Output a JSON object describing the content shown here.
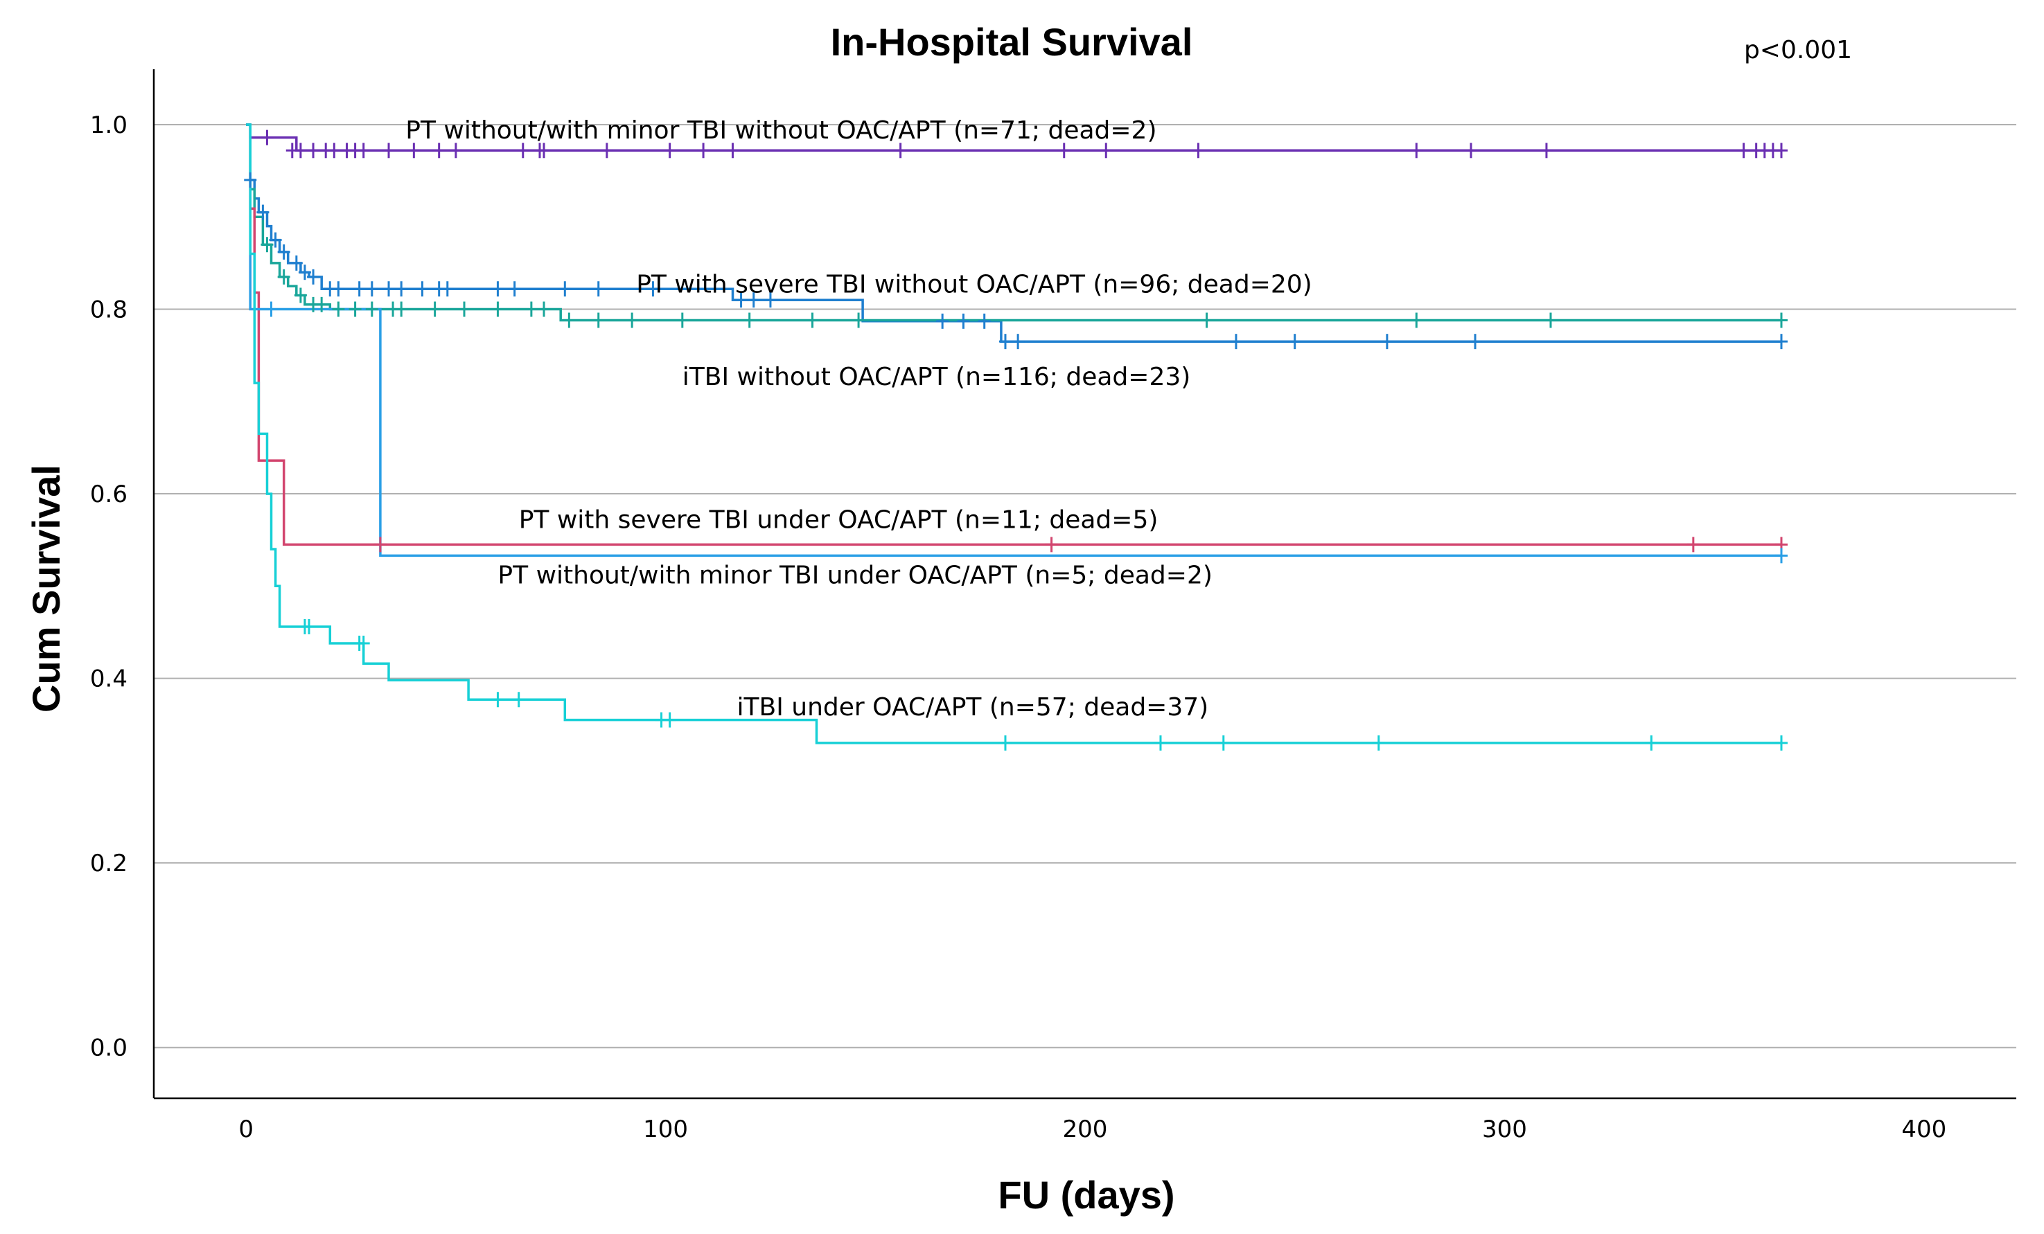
{
  "chart_data": {
    "type": "line",
    "subtype": "kaplan-meier",
    "title": "In-Hospital Survival",
    "p_value": "p<0.001",
    "xlabel": "FU (days)",
    "ylabel": "Cum Survival",
    "xlim": [
      -22,
      422
    ],
    "ylim": [
      -0.055,
      1.06
    ],
    "x_ticks": [
      0,
      100,
      200,
      300,
      400
    ],
    "x_tick_labels": [
      "0",
      "100",
      "200",
      "300",
      "400"
    ],
    "y_ticks": [
      0.0,
      0.2,
      0.4,
      0.6,
      0.8,
      1.0
    ],
    "y_tick_labels": [
      "0.0",
      "0.2",
      "0.4",
      "0.6",
      "0.8",
      "1.0"
    ],
    "grid": "horizontal",
    "series": [
      {
        "name": "PT without/with minor TBI without OAC/APT (n=71; dead=2)",
        "color": "#6a2fb2",
        "steps": [
          [
            0,
            1.0
          ],
          [
            1,
            0.986
          ],
          [
            12,
            0.972
          ],
          [
            366,
            0.972
          ]
        ],
        "censored": [
          [
            5,
            0.986
          ],
          [
            11,
            0.972
          ],
          [
            13,
            0.972
          ],
          [
            16,
            0.972
          ],
          [
            19,
            0.972
          ],
          [
            21,
            0.972
          ],
          [
            24,
            0.972
          ],
          [
            26,
            0.972
          ],
          [
            28,
            0.972
          ],
          [
            34,
            0.972
          ],
          [
            40,
            0.972
          ],
          [
            46,
            0.972
          ],
          [
            50,
            0.972
          ],
          [
            66,
            0.972
          ],
          [
            70,
            0.972
          ],
          [
            71,
            0.972
          ],
          [
            86,
            0.972
          ],
          [
            101,
            0.972
          ],
          [
            109,
            0.972
          ],
          [
            116,
            0.972
          ],
          [
            156,
            0.972
          ],
          [
            195,
            0.972
          ],
          [
            205,
            0.972
          ],
          [
            227,
            0.972
          ],
          [
            279,
            0.972
          ],
          [
            292,
            0.972
          ],
          [
            310,
            0.972
          ],
          [
            357,
            0.972
          ],
          [
            360,
            0.972
          ],
          [
            362,
            0.972
          ],
          [
            364,
            0.972
          ],
          [
            366,
            0.972
          ]
        ],
        "label_anchor": [
          38,
          0.985
        ]
      },
      {
        "name": "PT with severe TBI without OAC/APT (n=96; dead=20)",
        "color": "#1f7fcf",
        "steps": [
          [
            0,
            1.0
          ],
          [
            1,
            0.94
          ],
          [
            2,
            0.92
          ],
          [
            3,
            0.905
          ],
          [
            5,
            0.89
          ],
          [
            6,
            0.875
          ],
          [
            8,
            0.862
          ],
          [
            10,
            0.85
          ],
          [
            13,
            0.84
          ],
          [
            15,
            0.835
          ],
          [
            18,
            0.822
          ],
          [
            116,
            0.81
          ],
          [
            147,
            0.787
          ],
          [
            180,
            0.765
          ],
          [
            366,
            0.765
          ]
        ],
        "censored": [
          [
            1,
            0.94
          ],
          [
            4,
            0.905
          ],
          [
            7,
            0.875
          ],
          [
            9,
            0.862
          ],
          [
            12,
            0.85
          ],
          [
            14,
            0.84
          ],
          [
            16,
            0.835
          ],
          [
            20,
            0.822
          ],
          [
            22,
            0.822
          ],
          [
            27,
            0.822
          ],
          [
            30,
            0.822
          ],
          [
            34,
            0.822
          ],
          [
            37,
            0.822
          ],
          [
            42,
            0.822
          ],
          [
            46,
            0.822
          ],
          [
            48,
            0.822
          ],
          [
            60,
            0.822
          ],
          [
            64,
            0.822
          ],
          [
            76,
            0.822
          ],
          [
            84,
            0.822
          ],
          [
            97,
            0.822
          ],
          [
            118,
            0.81
          ],
          [
            121,
            0.81
          ],
          [
            125,
            0.81
          ],
          [
            166,
            0.787
          ],
          [
            171,
            0.787
          ],
          [
            176,
            0.787
          ],
          [
            181,
            0.765
          ],
          [
            184,
            0.765
          ],
          [
            236,
            0.765
          ],
          [
            250,
            0.765
          ],
          [
            272,
            0.765
          ],
          [
            293,
            0.765
          ],
          [
            366,
            0.765
          ]
        ],
        "label_anchor": [
          93,
          0.818
        ]
      },
      {
        "name": "iTBI without OAC/APT (n=116; dead=23)",
        "color": "#1aa69a",
        "steps": [
          [
            0,
            1.0
          ],
          [
            1,
            0.93
          ],
          [
            2,
            0.9
          ],
          [
            4,
            0.87
          ],
          [
            6,
            0.85
          ],
          [
            8,
            0.835
          ],
          [
            10,
            0.825
          ],
          [
            12,
            0.815
          ],
          [
            14,
            0.805
          ],
          [
            20,
            0.8
          ],
          [
            75,
            0.788
          ],
          [
            366,
            0.788
          ]
        ],
        "censored": [
          [
            5,
            0.87
          ],
          [
            9,
            0.835
          ],
          [
            13,
            0.815
          ],
          [
            16,
            0.805
          ],
          [
            18,
            0.805
          ],
          [
            22,
            0.8
          ],
          [
            26,
            0.8
          ],
          [
            30,
            0.8
          ],
          [
            35,
            0.8
          ],
          [
            37,
            0.8
          ],
          [
            45,
            0.8
          ],
          [
            52,
            0.8
          ],
          [
            60,
            0.8
          ],
          [
            68,
            0.8
          ],
          [
            71,
            0.8
          ],
          [
            77,
            0.788
          ],
          [
            84,
            0.788
          ],
          [
            92,
            0.788
          ],
          [
            104,
            0.788
          ],
          [
            120,
            0.788
          ],
          [
            135,
            0.788
          ],
          [
            146,
            0.788
          ],
          [
            229,
            0.788
          ],
          [
            279,
            0.788
          ],
          [
            311,
            0.788
          ],
          [
            366,
            0.788
          ]
        ],
        "label_anchor": [
          104,
          0.718
        ]
      },
      {
        "name": "PT with severe TBI under OAC/APT (n=11; dead=5)",
        "color": "#d2456e",
        "steps": [
          [
            0,
            1.0
          ],
          [
            1,
            0.909
          ],
          [
            2,
            0.818
          ],
          [
            3,
            0.636
          ],
          [
            9,
            0.545
          ],
          [
            366,
            0.545
          ]
        ],
        "censored": [
          [
            32,
            0.545
          ],
          [
            192,
            0.545
          ],
          [
            345,
            0.545
          ],
          [
            366,
            0.545
          ]
        ],
        "label_anchor": [
          65,
          0.563
        ]
      },
      {
        "name": "PT without/with minor TBI under OAC/APT (n=5; dead=2)",
        "color": "#2a9fe6",
        "steps": [
          [
            0,
            1.0
          ],
          [
            1,
            0.8
          ],
          [
            32,
            0.533
          ],
          [
            366,
            0.533
          ]
        ],
        "censored": [
          [
            6,
            0.8
          ],
          [
            366,
            0.533
          ]
        ],
        "label_anchor": [
          60,
          0.503
        ]
      },
      {
        "name": "iTBI under OAC/APT (n=57; dead=37)",
        "color": "#17d0d6",
        "steps": [
          [
            0,
            1.0
          ],
          [
            1,
            0.86
          ],
          [
            2,
            0.72
          ],
          [
            3,
            0.665
          ],
          [
            5,
            0.6
          ],
          [
            6,
            0.54
          ],
          [
            7,
            0.5
          ],
          [
            8,
            0.456
          ],
          [
            20,
            0.438
          ],
          [
            28,
            0.416
          ],
          [
            34,
            0.398
          ],
          [
            53,
            0.377
          ],
          [
            76,
            0.355
          ],
          [
            136,
            0.33
          ],
          [
            366,
            0.33
          ]
        ],
        "censored": [
          [
            14,
            0.456
          ],
          [
            15,
            0.456
          ],
          [
            27,
            0.438
          ],
          [
            28,
            0.438
          ],
          [
            60,
            0.377
          ],
          [
            65,
            0.377
          ],
          [
            99,
            0.355
          ],
          [
            101,
            0.355
          ],
          [
            181,
            0.33
          ],
          [
            218,
            0.33
          ],
          [
            233,
            0.33
          ],
          [
            270,
            0.33
          ],
          [
            335,
            0.33
          ],
          [
            366,
            0.33
          ]
        ],
        "label_anchor": [
          117,
          0.36
        ]
      }
    ]
  }
}
